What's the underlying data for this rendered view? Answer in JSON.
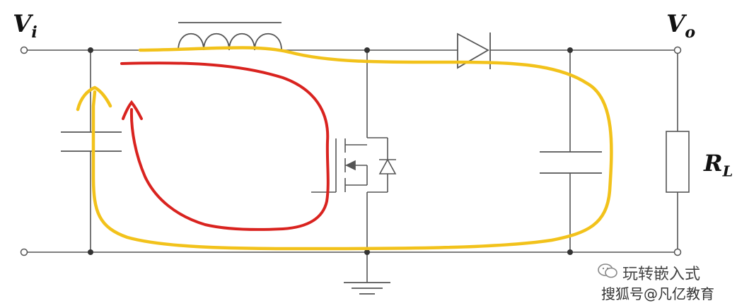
{
  "labels": {
    "input_voltage": "V",
    "input_voltage_sub": "i",
    "output_voltage": "V",
    "output_voltage_sub": "o",
    "load": "R",
    "load_sub": "L"
  },
  "watermark": {
    "line1": "玩转嵌入式",
    "line2": "搜狐号@凡亿教育"
  },
  "colors": {
    "wire": "#555555",
    "red_loop": "#d9231f",
    "yellow_loop": "#f2c21b"
  },
  "icons": [
    "wechat-icon",
    "ground-icon",
    "diode-icon",
    "inductor-icon",
    "mosfet-icon",
    "capacitor-icon",
    "resistor-icon"
  ]
}
